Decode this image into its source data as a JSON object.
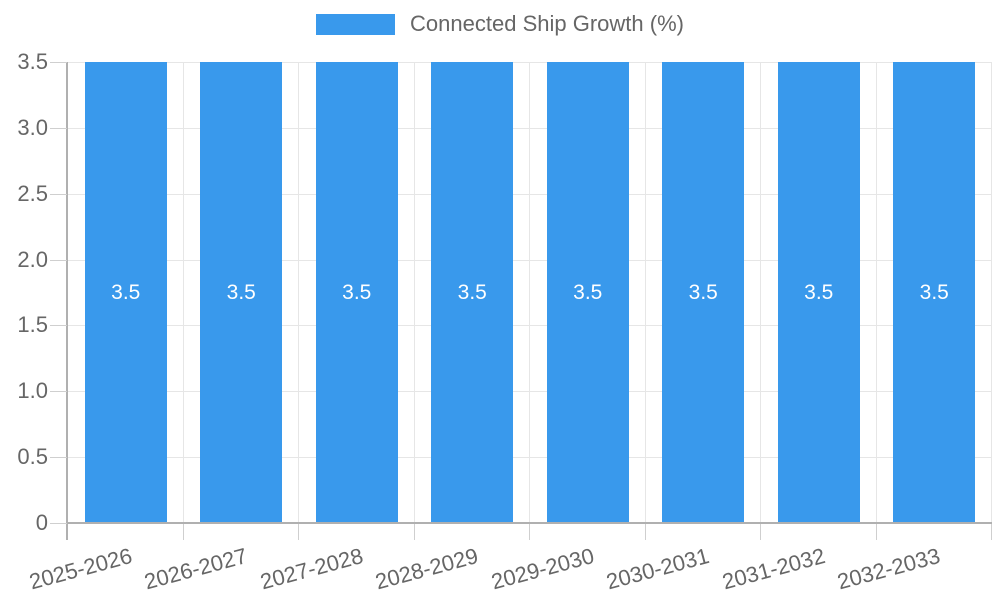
{
  "chart_data": {
    "type": "bar",
    "categories": [
      "2025-2026",
      "2026-2027",
      "2027-2028",
      "2028-2029",
      "2029-2030",
      "2030-2031",
      "2031-2032",
      "2032-2033"
    ],
    "series": [
      {
        "name": "Connected Ship Growth (%)",
        "values": [
          3.5,
          3.5,
          3.5,
          3.5,
          3.5,
          3.5,
          3.5,
          3.5
        ]
      }
    ],
    "bar_value_labels": [
      "3.5",
      "3.5",
      "3.5",
      "3.5",
      "3.5",
      "3.5",
      "3.5",
      "3.5"
    ],
    "y_ticks": [
      "3.5",
      "3.0",
      "2.5",
      "2.0",
      "1.5",
      "1.0",
      "0.5",
      "0"
    ],
    "ylim": [
      0,
      3.5
    ],
    "xlabel": "",
    "ylabel": "",
    "grid": true,
    "legend_position": "top",
    "x_tick_label_rotation_deg": -15,
    "colors": {
      "bar": "#3999ec",
      "grid": "#e6e6e6",
      "axis": "#b0b0b0",
      "tick_mark": "#cfcfcf",
      "tick_text": "#666666",
      "bar_label_text": "#ffffff"
    }
  }
}
